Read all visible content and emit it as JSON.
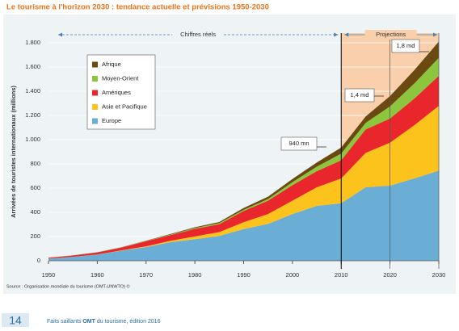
{
  "chart_data": {
    "type": "stacked-area",
    "title": "Le tourisme à l'horizon 2030 : tendance actuelle et prévisions 1950-2030",
    "y_label": "Arrivées de touristes internationaux (millions)",
    "source": "Source : Organisation mondiale du tourisme (OMT-UNWTO) ©",
    "period_labels": [
      "Chiffres réels",
      "Projections"
    ],
    "projection_start": 2010,
    "annotations": [
      "940 mn",
      "1,4 md",
      "1,8 md"
    ],
    "x": [
      1950,
      1955,
      1960,
      1965,
      1970,
      1975,
      1980,
      1985,
      1990,
      1995,
      2000,
      2005,
      2010,
      2015,
      2020,
      2025,
      2030
    ],
    "series": [
      {
        "name": "Europe",
        "color": "#6aaed6",
        "values": [
          17,
          32,
          51,
          83,
          113,
          153,
          178,
          205,
          262,
          304,
          386,
          453,
          475,
          607,
          620,
          680,
          744
        ]
      },
      {
        "name": "Asie et Pacifique",
        "color": "#fcc31d",
        "values": [
          0.2,
          0.6,
          1,
          3,
          6,
          12,
          23,
          32,
          56,
          82,
          110,
          154,
          205,
          284,
          355,
          440,
          535
        ]
      },
      {
        "name": "Amériques",
        "color": "#e8262b",
        "values": [
          7.5,
          11,
          16,
          23,
          42,
          47,
          62,
          65,
          93,
          110,
          128,
          133,
          150,
          193,
          199,
          220,
          248
        ]
      },
      {
        "name": "Moyen-Orient",
        "color": "#8cc63f",
        "values": [
          0.2,
          0.4,
          0.6,
          1.5,
          2,
          4,
          7,
          9,
          10,
          14,
          25,
          37,
          55,
          54,
          101,
          125,
          149
        ]
      },
      {
        "name": "Afrique",
        "color": "#6b4a12",
        "values": [
          0.5,
          0.8,
          1,
          2,
          2.5,
          5,
          7,
          9,
          15,
          19,
          26,
          35,
          50,
          53,
          85,
          110,
          134
        ]
      }
    ],
    "xlim": [
      1950,
      2030
    ],
    "xticks": [
      1950,
      1960,
      1970,
      1980,
      1990,
      2000,
      2010,
      2020,
      2030
    ],
    "ylim": [
      0,
      1800
    ],
    "yticks": [
      0,
      200,
      400,
      600,
      800,
      {
        "value": 1000,
        "label": "1.000"
      },
      {
        "value": 1200,
        "label": "1.200"
      },
      {
        "value": 1400,
        "label": "1.400"
      },
      {
        "value": 1600,
        "label": "1.600"
      },
      {
        "value": 1800,
        "label": "1.800"
      }
    ]
  },
  "footer": {
    "page": "14",
    "text_before": "Faits saillants ",
    "text_bold": "OMT",
    "text_after": " du tourisme, édition 2016"
  }
}
